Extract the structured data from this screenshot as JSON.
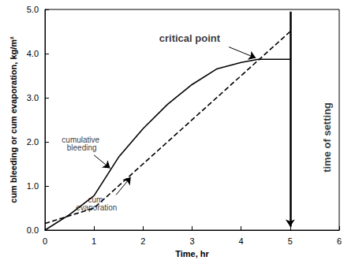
{
  "chart_data": {
    "type": "line",
    "x_label": "Time, hr",
    "y_label": "cum bleeding or cum evaporation, kg/m²",
    "xlim": [
      0,
      6
    ],
    "xticks": [
      0,
      1,
      2,
      3,
      4,
      5,
      6
    ],
    "ylim": [
      0,
      5
    ],
    "yticks": [
      {
        "value": 0,
        "label": "0.0"
      },
      {
        "value": 1,
        "label": "1.0"
      },
      {
        "value": 2,
        "label": "2.0"
      },
      {
        "value": 3,
        "label": "3.0"
      },
      {
        "value": 4,
        "label": "4.0"
      },
      {
        "value": 5,
        "label": "5.0"
      }
    ],
    "grid": false,
    "series": [
      {
        "name": "cumulative bleeding",
        "color": "#000000",
        "line_style": "solid",
        "marker": "none",
        "x": [
          0,
          0.5,
          1,
          1.5,
          2,
          2.5,
          3,
          3.5,
          4,
          4.35,
          5
        ],
        "values": [
          0,
          0.35,
          0.78,
          1.65,
          2.3,
          2.85,
          3.3,
          3.65,
          3.8,
          3.87,
          3.87
        ]
      },
      {
        "name": "cum evaporation",
        "color": "#000000",
        "line_style": "dashed",
        "marker": "none",
        "x": [
          0,
          1,
          5
        ],
        "values": [
          0.15,
          0.5,
          4.5
        ]
      }
    ],
    "annotations": [
      {
        "text": "critical point",
        "weight": "bold",
        "x": 2.95,
        "y": 4.35,
        "arrow_from": [
          3.75,
          4.15
        ],
        "arrow_to": [
          4.3,
          3.9
        ]
      },
      {
        "text": "cumulative bleeding",
        "x": 0.75,
        "y": 1.95,
        "arrow_from": [
          1.0,
          1.7
        ],
        "arrow_to": [
          1.33,
          1.4
        ]
      },
      {
        "text": "cum evaporation",
        "x": 1.05,
        "y": 0.6,
        "arrow_from": [
          1.45,
          0.8
        ],
        "arrow_to": [
          1.75,
          1.2
        ]
      },
      {
        "text": "time of setting",
        "weight": "bold",
        "rotated": true,
        "x": 5.75,
        "y": 2.1,
        "arrow_from": [
          5,
          4.95
        ],
        "arrow_to": [
          5,
          0.08
        ]
      }
    ]
  }
}
